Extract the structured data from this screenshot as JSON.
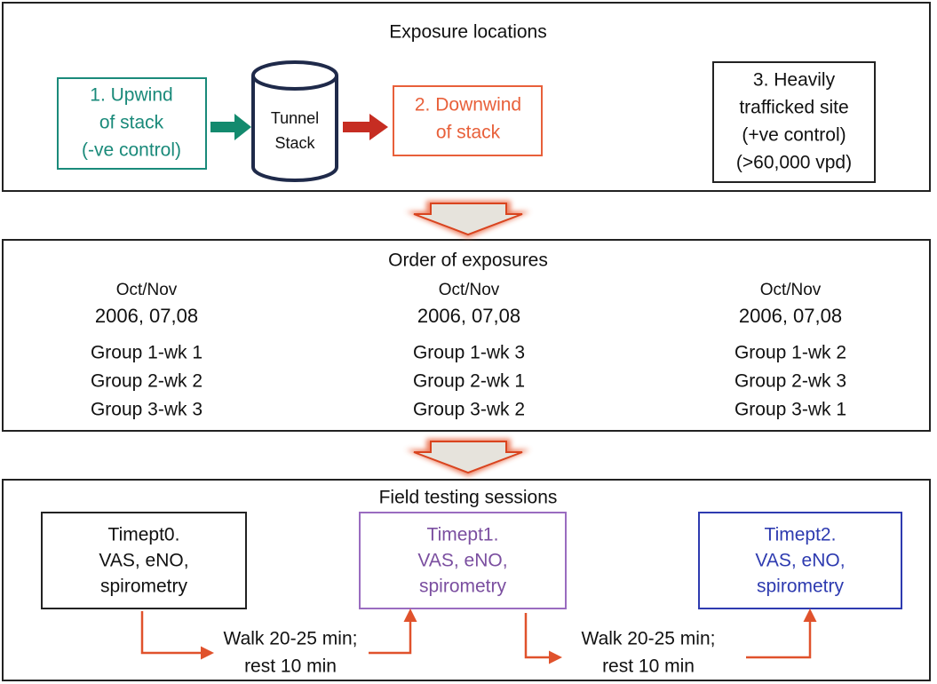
{
  "exposure_locations": {
    "title": "Exposure locations",
    "upwind": [
      "1. Upwind",
      "of stack",
      "(-ve control)"
    ],
    "stack": [
      "Tunnel",
      "Stack"
    ],
    "downwind": [
      "2. Downwind",
      "of stack"
    ],
    "trafficked": [
      "3. Heavily",
      "trafficked site",
      "(+ve control)",
      "(>60,000 vpd)"
    ]
  },
  "order_of_exposures": {
    "title": "Order of exposures",
    "columns": [
      {
        "period": "Oct/Nov",
        "years": "2006, 07,08",
        "groups": [
          "Group 1-wk 1",
          "Group 2-wk 2",
          "Group 3-wk 3"
        ]
      },
      {
        "period": "Oct/Nov",
        "years": "2006, 07,08",
        "groups": [
          "Group 1-wk 3",
          "Group 2-wk 1",
          "Group 3-wk 2"
        ]
      },
      {
        "period": "Oct/Nov",
        "years": "2006, 07,08",
        "groups": [
          "Group 1-wk 2",
          "Group 2-wk 3",
          "Group 3-wk 1"
        ]
      }
    ]
  },
  "field_testing_sessions": {
    "title": "Field testing sessions",
    "timepoints": [
      [
        "Timept0.",
        "VAS, eNO,",
        "spirometry"
      ],
      [
        "Timept1.",
        "VAS, eNO,",
        "spirometry"
      ],
      [
        "Timept2.",
        "VAS, eNO,",
        "spirometry"
      ]
    ],
    "intervals": [
      [
        "Walk 20-25 min;",
        "rest 10 min"
      ],
      [
        "Walk 20-25 min;",
        "rest 10 min"
      ]
    ]
  }
}
